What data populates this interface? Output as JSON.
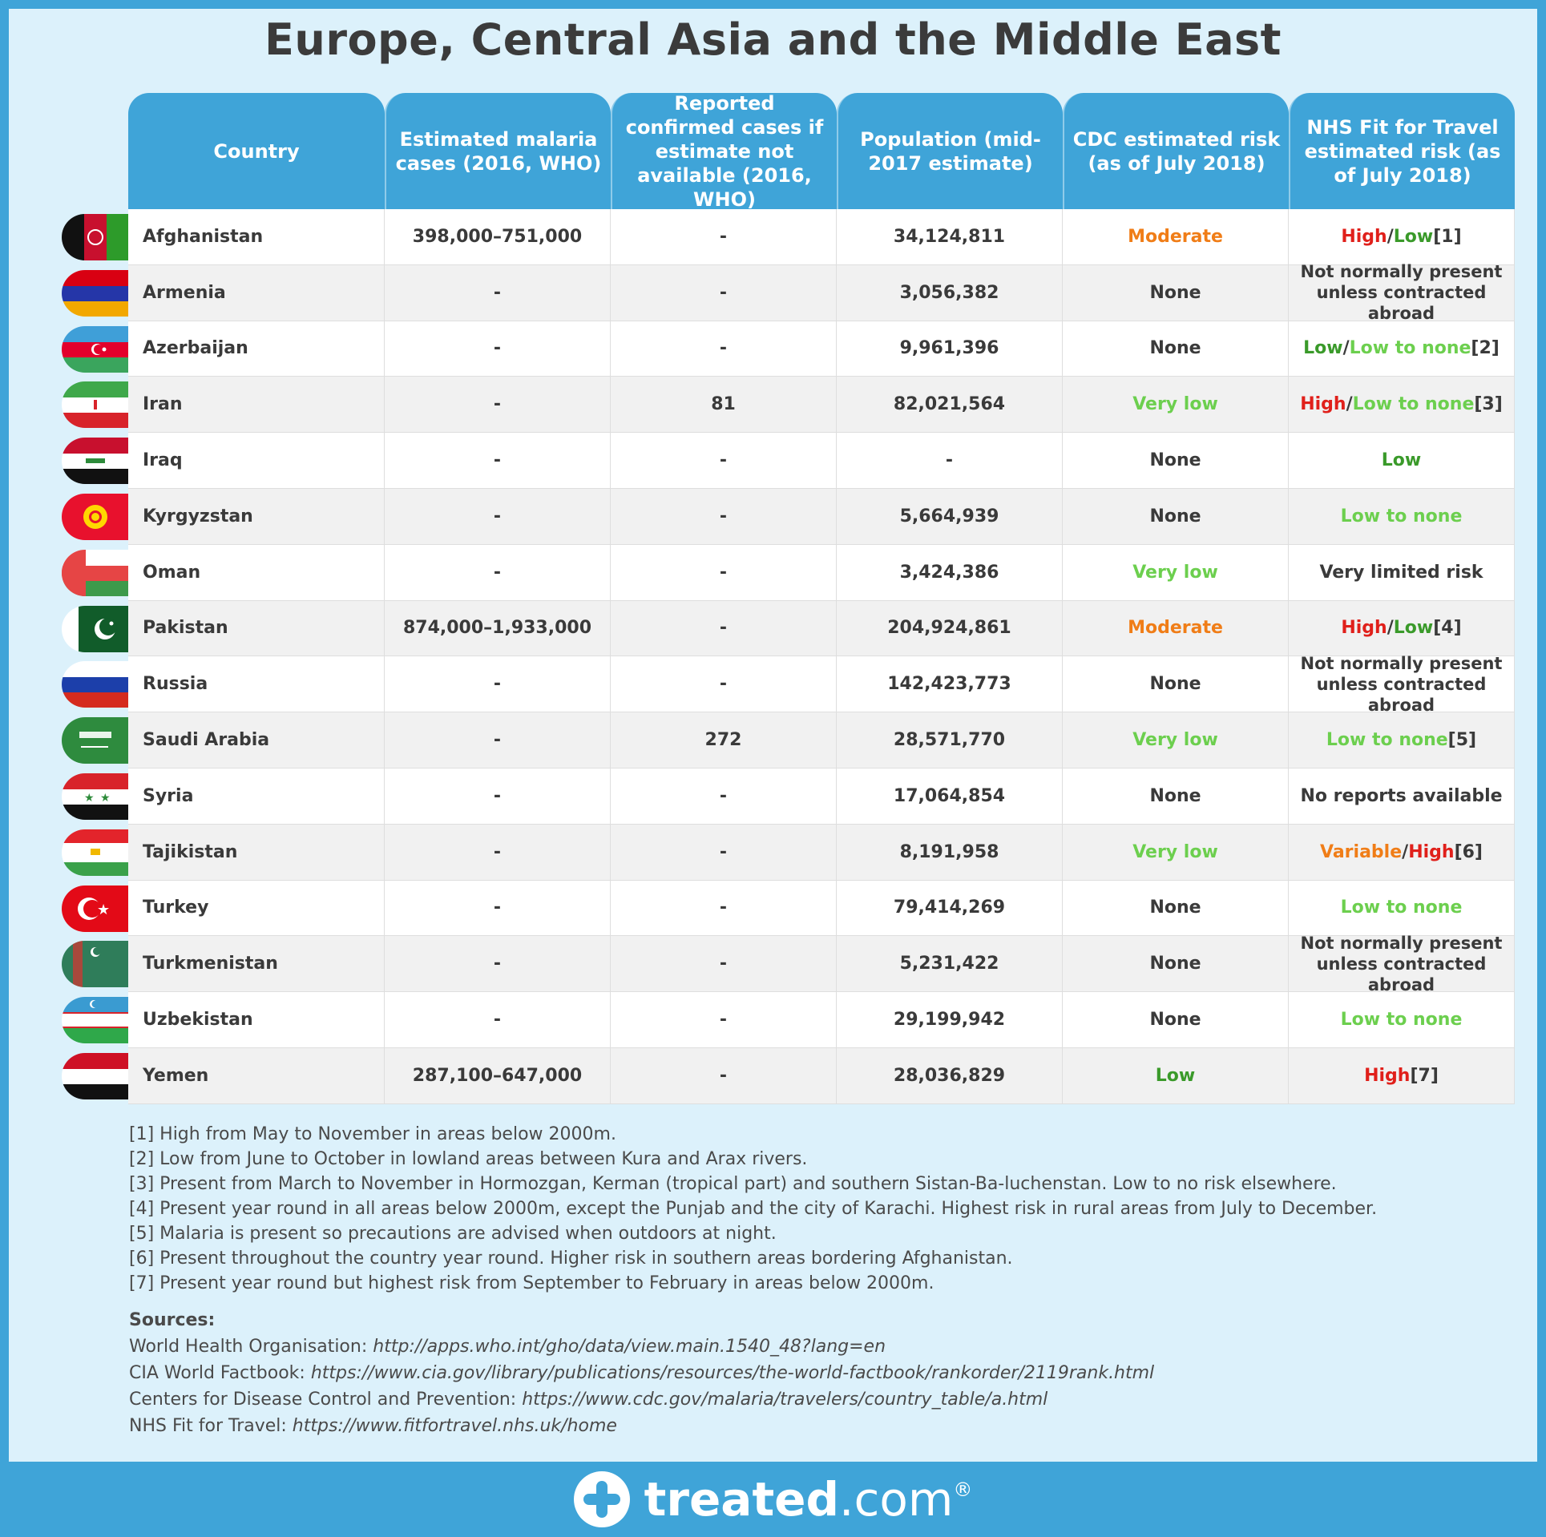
{
  "title": "Europe, Central Asia and the Middle East",
  "headers": [
    "Country",
    "Estimated malaria cases (2016, WHO)",
    "Reported confirmed cases if estimate not available (2016, WHO)",
    "Population (mid-2017 estimate)",
    "CDC estimated risk (as of July 2018)",
    "NHS Fit for Travel estimated risk (as of July 2018)"
  ],
  "rows": [
    {
      "country": "Afghanistan",
      "estimated": "398,000–751,000",
      "reported": "-",
      "population": "34,124,811",
      "cdc": {
        "text": "Moderate",
        "cls": "c-mod"
      },
      "nhs": [
        {
          "t": "High",
          "c": "c-high"
        },
        {
          "t": "/",
          "c": "c-dark"
        },
        {
          "t": "Low",
          "c": "c-low"
        },
        {
          "t": " [1]",
          "c": "c-dark"
        }
      ]
    },
    {
      "country": "Armenia",
      "estimated": "-",
      "reported": "-",
      "population": "3,056,382",
      "cdc": {
        "text": "None",
        "cls": "c-dark"
      },
      "nhs_small": true,
      "nhs": [
        {
          "t": "Not normally present unless contracted abroad",
          "c": "c-dark"
        }
      ]
    },
    {
      "country": "Azerbaijan",
      "estimated": "-",
      "reported": "-",
      "population": "9,961,396",
      "cdc": {
        "text": "None",
        "cls": "c-dark"
      },
      "nhs": [
        {
          "t": "Low",
          "c": "c-low"
        },
        {
          "t": "/",
          "c": "c-dark"
        },
        {
          "t": "Low to none",
          "c": "c-lownone"
        },
        {
          "t": " [2]",
          "c": "c-dark"
        }
      ]
    },
    {
      "country": "Iran",
      "estimated": "-",
      "reported": "81",
      "population": "82,021,564",
      "cdc": {
        "text": "Very low",
        "cls": "c-verylow"
      },
      "nhs": [
        {
          "t": "High",
          "c": "c-high"
        },
        {
          "t": "/",
          "c": "c-dark"
        },
        {
          "t": "Low to none",
          "c": "c-lownone"
        },
        {
          "t": " [3]",
          "c": "c-dark"
        }
      ]
    },
    {
      "country": "Iraq",
      "estimated": "-",
      "reported": "-",
      "population": "-",
      "cdc": {
        "text": "None",
        "cls": "c-dark"
      },
      "nhs": [
        {
          "t": "Low",
          "c": "c-low"
        }
      ]
    },
    {
      "country": "Kyrgyzstan",
      "estimated": "-",
      "reported": "-",
      "population": "5,664,939",
      "cdc": {
        "text": "None",
        "cls": "c-dark"
      },
      "nhs": [
        {
          "t": "Low to none",
          "c": "c-lownone"
        }
      ]
    },
    {
      "country": "Oman",
      "estimated": "-",
      "reported": "-",
      "population": "3,424,386",
      "cdc": {
        "text": "Very low",
        "cls": "c-verylow"
      },
      "nhs": [
        {
          "t": "Very limited risk",
          "c": "c-dark"
        }
      ]
    },
    {
      "country": "Pakistan",
      "estimated": "874,000–1,933,000",
      "reported": "-",
      "population": "204,924,861",
      "cdc": {
        "text": "Moderate",
        "cls": "c-mod"
      },
      "nhs": [
        {
          "t": "High",
          "c": "c-high"
        },
        {
          "t": "/",
          "c": "c-dark"
        },
        {
          "t": "Low",
          "c": "c-low"
        },
        {
          "t": " [4]",
          "c": "c-dark"
        }
      ]
    },
    {
      "country": "Russia",
      "estimated": "-",
      "reported": "-",
      "population": "142,423,773",
      "cdc": {
        "text": "None",
        "cls": "c-dark"
      },
      "nhs_small": true,
      "nhs": [
        {
          "t": "Not normally present unless contracted abroad",
          "c": "c-dark"
        }
      ]
    },
    {
      "country": "Saudi Arabia",
      "estimated": "-",
      "reported": "272",
      "population": "28,571,770",
      "cdc": {
        "text": "Very low",
        "cls": "c-verylow"
      },
      "nhs": [
        {
          "t": "Low to none",
          "c": "c-lownone"
        },
        {
          "t": " [5]",
          "c": "c-dark"
        }
      ]
    },
    {
      "country": "Syria",
      "estimated": "-",
      "reported": "-",
      "population": "17,064,854",
      "cdc": {
        "text": "None",
        "cls": "c-dark"
      },
      "nhs": [
        {
          "t": "No reports available",
          "c": "c-dark"
        }
      ]
    },
    {
      "country": "Tajikistan",
      "estimated": "-",
      "reported": "-",
      "population": "8,191,958",
      "cdc": {
        "text": "Very low",
        "cls": "c-verylow"
      },
      "nhs": [
        {
          "t": "Variable",
          "c": "c-var"
        },
        {
          "t": "/",
          "c": "c-dark"
        },
        {
          "t": "High",
          "c": "c-high"
        },
        {
          "t": " [6]",
          "c": "c-dark"
        }
      ]
    },
    {
      "country": "Turkey",
      "estimated": "-",
      "reported": "-",
      "population": "79,414,269",
      "cdc": {
        "text": "None",
        "cls": "c-dark"
      },
      "nhs": [
        {
          "t": "Low to none",
          "c": "c-lownone"
        }
      ]
    },
    {
      "country": "Turkmenistan",
      "estimated": "-",
      "reported": "-",
      "population": "5,231,422",
      "cdc": {
        "text": "None",
        "cls": "c-dark"
      },
      "nhs_small": true,
      "nhs": [
        {
          "t": "Not normally present unless contracted abroad",
          "c": "c-dark"
        }
      ]
    },
    {
      "country": "Uzbekistan",
      "estimated": "-",
      "reported": "-",
      "population": "29,199,942",
      "cdc": {
        "text": "None",
        "cls": "c-dark"
      },
      "nhs": [
        {
          "t": "Low to none",
          "c": "c-lownone"
        }
      ]
    },
    {
      "country": "Yemen",
      "estimated": "287,100–647,000",
      "reported": "-",
      "population": "28,036,829",
      "cdc": {
        "text": "Low",
        "cls": "c-low"
      },
      "nhs": [
        {
          "t": "High",
          "c": "c-high"
        },
        {
          "t": " [7]",
          "c": "c-dark"
        }
      ]
    }
  ],
  "colors": {
    "header_bg": "#3fa4d8",
    "panel_bg": "#dcf1fb",
    "high": "#e0201b",
    "low": "#3a9a2a",
    "low_to_none": "#6ccf4e",
    "moderate": "#f07d17"
  },
  "notes": [
    "[1] High from May to November in areas below 2000m.",
    "[2] Low from June to October in lowland areas between Kura and Arax rivers.",
    "[3] Present from March to November in Hormozgan, Kerman (tropical part) and southern Sistan-Ba-luchenstan. Low to no risk elsewhere.",
    "[4] Present year round in all areas below 2000m, except the Punjab and the city of Karachi. Highest risk in rural areas from July to December.",
    "[5] Malaria is present so precautions are advised when outdoors at night.",
    "[6] Present throughout the country year round. Higher risk in southern areas bordering Afghanistan.",
    "[7] Present year round but highest risk from September to February in areas below 2000m."
  ],
  "sources": {
    "label": "Sources:",
    "items": [
      {
        "name": "World Health Organisation:",
        "url": "http://apps.who.int/gho/data/view.main.1540_48?lang=en"
      },
      {
        "name": "CIA World Factbook:",
        "url": "https://www.cia.gov/library/publications/resources/the-world-factbook/rankorder/2119rank.html"
      },
      {
        "name": "Centers for Disease Control and Prevention:",
        "url": "https://www.cdc.gov/malaria/travelers/country_table/a.html"
      },
      {
        "name": "NHS Fit for Travel:",
        "url": "https://www.fitfortravel.nhs.uk/home"
      }
    ]
  },
  "logo": {
    "bold": "treated",
    "rest": ".com",
    "mark": "®"
  }
}
